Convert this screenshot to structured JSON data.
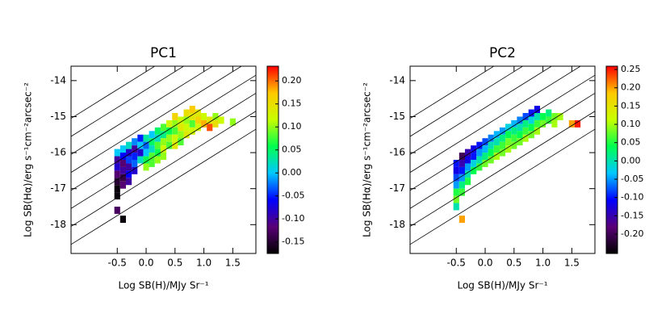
{
  "chart_data": [
    {
      "type": "heatmap",
      "title": "PC1",
      "x_label": "Log SB(H)/MJy Sr⁻¹",
      "y_label": "Log SB(Hα)/erg s⁻¹cm⁻²arcsec⁻²",
      "xlim": [
        -1.3,
        1.9
      ],
      "ylim": [
        -18.8,
        -13.6
      ],
      "xticks": [
        -0.5,
        {
          "value": 0,
          "label": "0.0"
        },
        0.5,
        {
          "value": 1,
          "label": "1.0"
        },
        1.5
      ],
      "yticks": [
        -18,
        -17,
        -16,
        -15,
        -14
      ],
      "clim": [
        -0.175,
        0.232
      ],
      "cticks": [
        -0.15,
        {
          "value": -0.1,
          "label": "-0.10"
        },
        -0.05,
        {
          "value": 0,
          "label": "0.00"
        },
        0.05,
        {
          "value": 0.1,
          "label": "0.10"
        },
        0.15,
        {
          "value": 0.2,
          "label": "0.20"
        }
      ],
      "colormap": [
        "#000000",
        "#5a0078",
        "#0000ff",
        "#00c8ff",
        "#00ff50",
        "#c8ff00",
        "#ffc800",
        "#ff0000"
      ],
      "reference_lines": {
        "slope": 1,
        "intercepts": [
          -17.25,
          -16.75,
          -16.25,
          -15.75,
          -15.25,
          -14.75,
          -14.25,
          -13.75
        ]
      },
      "x": [
        -0.5,
        -0.5,
        -0.5,
        -0.5,
        -0.5,
        -0.5,
        -0.5,
        -0.5,
        -0.4,
        -0.4,
        -0.4,
        -0.4,
        -0.4,
        -0.4,
        -0.4,
        -0.3,
        -0.3,
        -0.3,
        -0.3,
        -0.3,
        -0.3,
        -0.2,
        -0.2,
        -0.2,
        -0.2,
        -0.2,
        -0.1,
        -0.1,
        -0.1,
        -0.1,
        0.0,
        0.0,
        0.0,
        0.0,
        0.0,
        0.1,
        0.1,
        0.1,
        0.1,
        0.1,
        0.2,
        0.2,
        0.2,
        0.2,
        0.2,
        0.3,
        0.3,
        0.3,
        0.3,
        0.3,
        0.4,
        0.4,
        0.4,
        0.4,
        0.5,
        0.5,
        0.5,
        0.5,
        0.5,
        0.6,
        0.6,
        0.6,
        0.6,
        0.7,
        0.7,
        0.7,
        0.7,
        0.8,
        0.8,
        0.8,
        0.8,
        0.9,
        0.9,
        0.9,
        1.0,
        1.0,
        1.1,
        1.1,
        1.2,
        1.2,
        1.3,
        1.5
      ],
      "y": [
        -16.0,
        -16.2,
        -16.4,
        -16.6,
        -16.8,
        -17.0,
        -17.2,
        -17.6,
        -15.9,
        -16.1,
        -16.3,
        -16.5,
        -16.7,
        -16.9,
        -17.85,
        -15.8,
        -16.0,
        -16.2,
        -16.4,
        -16.6,
        -16.8,
        -15.7,
        -15.9,
        -16.1,
        -16.3,
        -16.5,
        -15.6,
        -15.8,
        -16.0,
        -16.2,
        -15.6,
        -15.8,
        -16.0,
        -16.2,
        -16.4,
        -15.5,
        -15.7,
        -15.9,
        -16.1,
        -16.3,
        -15.4,
        -15.6,
        -15.8,
        -16.0,
        -16.2,
        -15.3,
        -15.5,
        -15.7,
        -15.9,
        -16.1,
        -15.2,
        -15.4,
        -15.6,
        -15.8,
        -15.0,
        -15.2,
        -15.4,
        -15.6,
        -15.8,
        -15.1,
        -15.3,
        -15.5,
        -15.7,
        -14.9,
        -15.1,
        -15.3,
        -15.5,
        -14.8,
        -15.0,
        -15.2,
        -15.4,
        -14.9,
        -15.1,
        -15.3,
        -15.0,
        -15.2,
        -15.1,
        -15.3,
        -15.0,
        -15.2,
        -15.1,
        -15.15
      ],
      "values": [
        0.0,
        -0.1,
        -0.08,
        -0.12,
        -0.15,
        -0.17,
        -0.17,
        -0.13,
        0.0,
        -0.06,
        -0.12,
        -0.1,
        -0.14,
        -0.12,
        -0.17,
        0.02,
        -0.08,
        -0.04,
        -0.1,
        -0.06,
        -0.1,
        -0.02,
        -0.1,
        -0.05,
        -0.03,
        -0.08,
        -0.05,
        0.0,
        -0.08,
        0.02,
        0.03,
        -0.03,
        0.0,
        0.06,
        0.1,
        0.0,
        0.05,
        0.02,
        0.08,
        0.08,
        0.05,
        0.02,
        0.08,
        0.06,
        0.1,
        0.08,
        0.04,
        0.1,
        0.12,
        0.1,
        0.12,
        0.06,
        0.1,
        0.08,
        0.16,
        0.1,
        0.08,
        0.12,
        0.14,
        0.12,
        0.14,
        0.1,
        0.08,
        0.15,
        0.1,
        0.12,
        0.14,
        0.17,
        0.14,
        0.08,
        0.12,
        0.14,
        0.16,
        0.12,
        0.12,
        0.18,
        0.14,
        0.21,
        0.1,
        0.15,
        0.12,
        0.1
      ]
    },
    {
      "type": "heatmap",
      "title": "PC2",
      "x_label": "Log SB(H)/MJy Sr⁻¹",
      "y_label": "Log SB(Hα)/erg s⁻¹cm⁻²arcsec⁻²",
      "xlim": [
        -1.3,
        1.9
      ],
      "ylim": [
        -18.8,
        -13.6
      ],
      "xticks": [
        -0.5,
        {
          "value": 0,
          "label": "0.0"
        },
        0.5,
        {
          "value": 1,
          "label": "1.0"
        },
        1.5
      ],
      "yticks": [
        -18,
        -17,
        -16,
        -15,
        -14
      ],
      "clim": [
        -0.253,
        0.259
      ],
      "cticks": [
        {
          "value": -0.2,
          "label": "-0.20"
        },
        -0.15,
        {
          "value": -0.1,
          "label": "-0.10"
        },
        -0.05,
        {
          "value": 0,
          "label": "0.00"
        },
        0.05,
        {
          "value": 0.1,
          "label": "0.10"
        },
        0.15,
        {
          "value": 0.2,
          "label": "0.20"
        },
        0.25
      ],
      "colormap": [
        "#000000",
        "#5a0078",
        "#0000ff",
        "#00c8ff",
        "#00ff50",
        "#c8ff00",
        "#ffc800",
        "#ff0000"
      ],
      "reference_lines": {
        "slope": 1,
        "intercepts": [
          -17.25,
          -16.75,
          -16.25,
          -15.75,
          -15.25,
          -14.75,
          -14.25,
          -13.75
        ]
      },
      "x": [
        -0.5,
        -0.5,
        -0.5,
        -0.5,
        -0.5,
        -0.5,
        -0.5,
        -0.4,
        -0.4,
        -0.4,
        -0.4,
        -0.4,
        -0.4,
        -0.4,
        -0.3,
        -0.3,
        -0.3,
        -0.3,
        -0.3,
        -0.2,
        -0.2,
        -0.2,
        -0.2,
        -0.1,
        -0.1,
        -0.1,
        -0.1,
        0.0,
        0.0,
        0.0,
        0.0,
        0.1,
        0.1,
        0.1,
        0.1,
        0.2,
        0.2,
        0.2,
        0.2,
        0.3,
        0.3,
        0.3,
        0.3,
        0.4,
        0.4,
        0.4,
        0.4,
        0.5,
        0.5,
        0.5,
        0.5,
        0.6,
        0.6,
        0.6,
        0.6,
        0.7,
        0.7,
        0.7,
        0.7,
        0.8,
        0.8,
        0.8,
        0.8,
        0.9,
        0.9,
        0.9,
        0.9,
        1.0,
        1.0,
        1.1,
        1.1,
        1.2,
        1.2,
        1.3,
        1.5,
        1.6
      ],
      "y": [
        -16.3,
        -16.5,
        -16.7,
        -16.9,
        -17.1,
        -17.3,
        -17.5,
        -17.85,
        -16.1,
        -16.3,
        -16.5,
        -16.7,
        -16.9,
        -17.1,
        -16.0,
        -16.2,
        -16.4,
        -16.6,
        -16.8,
        -15.9,
        -16.1,
        -16.3,
        -16.5,
        -15.8,
        -16.0,
        -16.2,
        -16.4,
        -15.7,
        -15.9,
        -16.1,
        -16.3,
        -15.6,
        -15.8,
        -16.0,
        -16.2,
        -15.5,
        -15.7,
        -15.9,
        -16.1,
        -15.4,
        -15.6,
        -15.8,
        -16.0,
        -15.3,
        -15.5,
        -15.7,
        -15.9,
        -15.2,
        -15.4,
        -15.6,
        -15.8,
        -15.1,
        -15.3,
        -15.5,
        -15.7,
        -15.0,
        -15.2,
        -15.4,
        -15.6,
        -14.9,
        -15.1,
        -15.3,
        -15.5,
        -14.8,
        -15.0,
        -15.2,
        -15.4,
        -15.0,
        -15.2,
        -14.9,
        -15.1,
        -15.0,
        -15.2,
        -15.0,
        -15.2,
        -15.2
      ],
      "values": [
        -0.1,
        -0.12,
        -0.08,
        -0.05,
        0.05,
        0.08,
        0.0,
        0.2,
        -0.2,
        -0.15,
        -0.1,
        -0.05,
        0.02,
        0.06,
        -0.15,
        -0.12,
        -0.05,
        0.0,
        0.05,
        -0.12,
        -0.1,
        -0.02,
        0.04,
        -0.1,
        -0.05,
        0.0,
        0.06,
        -0.08,
        -0.04,
        0.02,
        0.08,
        -0.06,
        0.0,
        0.04,
        0.08,
        -0.04,
        0.0,
        0.06,
        0.1,
        -0.05,
        0.02,
        0.06,
        0.08,
        -0.02,
        0.04,
        0.08,
        0.1,
        -0.04,
        0.02,
        0.06,
        0.08,
        -0.06,
        0.0,
        0.04,
        0.08,
        -0.08,
        0.02,
        0.06,
        0.1,
        -0.1,
        -0.02,
        0.04,
        0.08,
        -0.12,
        0.0,
        0.06,
        0.1,
        0.04,
        0.08,
        0.02,
        0.06,
        0.08,
        0.1,
        0.1,
        0.2,
        0.25
      ]
    }
  ]
}
